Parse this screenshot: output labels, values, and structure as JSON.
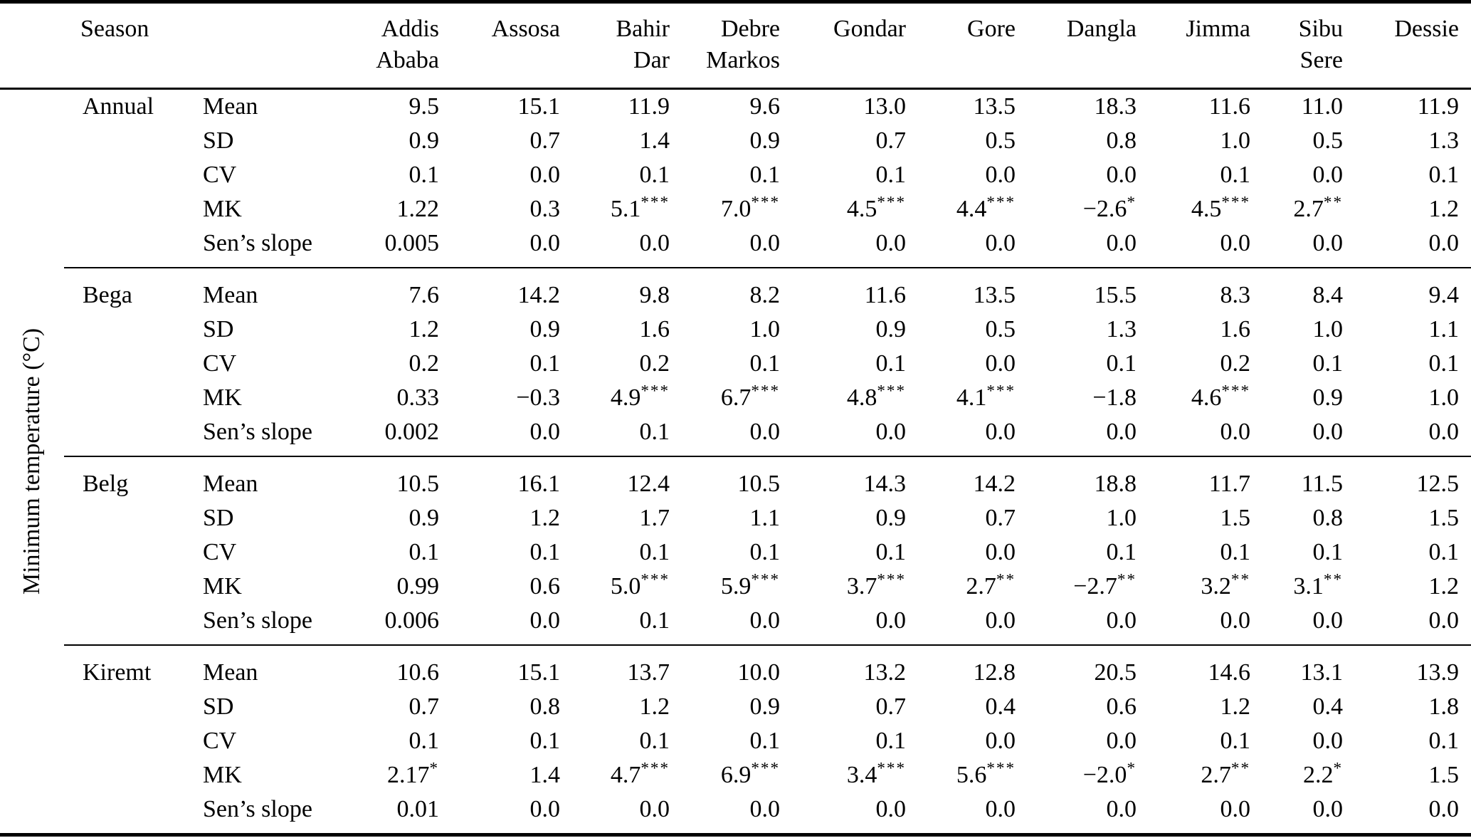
{
  "table": {
    "unit_label": "Minimum temperature (°C)",
    "season_header": "Season",
    "cities": [
      "Addis\nAbaba",
      "Assosa",
      "Bahir\nDar",
      "Debre\nMarkos",
      "Gondar",
      "Gore",
      "Dangla",
      "Jimma",
      "Sibu\nSere",
      "Dessie"
    ],
    "stat_labels": [
      "Mean",
      "SD",
      "CV",
      "MK",
      "Sen’s slope"
    ],
    "groups": [
      {
        "season": "Annual",
        "rows": [
          {
            "label": "Mean",
            "values": [
              "9.5",
              "15.1",
              "11.9",
              "9.6",
              "13.0",
              "13.5",
              "18.3",
              "11.6",
              "11.0",
              "11.9"
            ]
          },
          {
            "label": "SD",
            "values": [
              "0.9",
              "0.7",
              "1.4",
              "0.9",
              "0.7",
              "0.5",
              "0.8",
              "1.0",
              "0.5",
              "1.3"
            ]
          },
          {
            "label": "CV",
            "values": [
              "0.1",
              "0.0",
              "0.1",
              "0.1",
              "0.1",
              "0.0",
              "0.0",
              "0.1",
              "0.0",
              "0.1"
            ]
          },
          {
            "label": "MK",
            "values": [
              "1.22",
              "0.3",
              "5.1***",
              "7.0***",
              "4.5***",
              "4.4***",
              "−2.6*",
              "4.5***",
              "2.7**",
              "1.2"
            ]
          },
          {
            "label": "Sen’s slope",
            "values": [
              "0.005",
              "0.0",
              "0.0",
              "0.0",
              "0.0",
              "0.0",
              "0.0",
              "0.0",
              "0.0",
              "0.0"
            ]
          }
        ]
      },
      {
        "season": "Bega",
        "rows": [
          {
            "label": "Mean",
            "values": [
              "7.6",
              "14.2",
              "9.8",
              "8.2",
              "11.6",
              "13.5",
              "15.5",
              "8.3",
              "8.4",
              "9.4"
            ]
          },
          {
            "label": "SD",
            "values": [
              "1.2",
              "0.9",
              "1.6",
              "1.0",
              "0.9",
              "0.5",
              "1.3",
              "1.6",
              "1.0",
              "1.1"
            ]
          },
          {
            "label": "CV",
            "values": [
              "0.2",
              "0.1",
              "0.2",
              "0.1",
              "0.1",
              "0.0",
              "0.1",
              "0.2",
              "0.1",
              "0.1"
            ]
          },
          {
            "label": "MK",
            "values": [
              "0.33",
              "−0.3",
              "4.9***",
              "6.7***",
              "4.8***",
              "4.1***",
              "−1.8",
              "4.6***",
              "0.9",
              "1.0"
            ]
          },
          {
            "label": "Sen’s slope",
            "values": [
              "0.002",
              "0.0",
              "0.1",
              "0.0",
              "0.0",
              "0.0",
              "0.0",
              "0.0",
              "0.0",
              "0.0"
            ]
          }
        ]
      },
      {
        "season": "Belg",
        "rows": [
          {
            "label": "Mean",
            "values": [
              "10.5",
              "16.1",
              "12.4",
              "10.5",
              "14.3",
              "14.2",
              "18.8",
              "11.7",
              "11.5",
              "12.5"
            ]
          },
          {
            "label": "SD",
            "values": [
              "0.9",
              "1.2",
              "1.7",
              "1.1",
              "0.9",
              "0.7",
              "1.0",
              "1.5",
              "0.8",
              "1.5"
            ]
          },
          {
            "label": "CV",
            "values": [
              "0.1",
              "0.1",
              "0.1",
              "0.1",
              "0.1",
              "0.0",
              "0.1",
              "0.1",
              "0.1",
              "0.1"
            ]
          },
          {
            "label": "MK",
            "values": [
              "0.99",
              "0.6",
              "5.0***",
              "5.9***",
              "3.7***",
              "2.7**",
              "−2.7**",
              "3.2**",
              "3.1**",
              "1.2"
            ]
          },
          {
            "label": "Sen’s slope",
            "values": [
              "0.006",
              "0.0",
              "0.1",
              "0.0",
              "0.0",
              "0.0",
              "0.0",
              "0.0",
              "0.0",
              "0.0"
            ]
          }
        ]
      },
      {
        "season": "Kiremt",
        "rows": [
          {
            "label": "Mean",
            "values": [
              "10.6",
              "15.1",
              "13.7",
              "10.0",
              "13.2",
              "12.8",
              "20.5",
              "14.6",
              "13.1",
              "13.9"
            ]
          },
          {
            "label": "SD",
            "values": [
              "0.7",
              "0.8",
              "1.2",
              "0.9",
              "0.7",
              "0.4",
              "0.6",
              "1.2",
              "0.4",
              "1.8"
            ]
          },
          {
            "label": "CV",
            "values": [
              "0.1",
              "0.1",
              "0.1",
              "0.1",
              "0.1",
              "0.0",
              "0.0",
              "0.1",
              "0.0",
              "0.1"
            ]
          },
          {
            "label": "MK",
            "values": [
              "2.17*",
              "1.4",
              "4.7***",
              "6.9***",
              "3.4***",
              "5.6***",
              "−2.0*",
              "2.7**",
              "2.2*",
              "1.5"
            ]
          },
          {
            "label": "Sen’s slope",
            "values": [
              "0.01",
              "0.0",
              "0.0",
              "0.0",
              "0.0",
              "0.0",
              "0.0",
              "0.0",
              "0.0",
              "0.0"
            ]
          }
        ]
      }
    ]
  }
}
